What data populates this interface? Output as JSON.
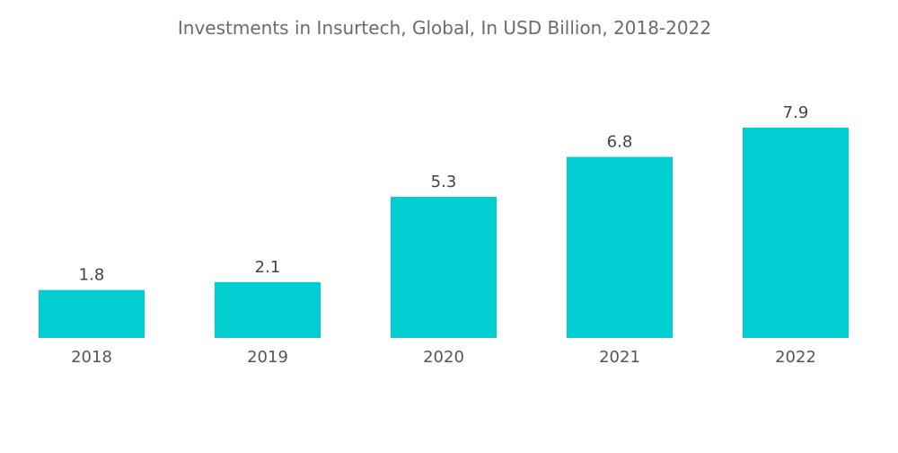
{
  "chart_data": {
    "type": "bar",
    "title": "Investments in Insurtech, Global, In USD Billion, 2018-2022",
    "categories": [
      "2018",
      "2019",
      "2020",
      "2021",
      "2022"
    ],
    "values": [
      1.8,
      2.1,
      5.3,
      6.8,
      7.9
    ],
    "value_labels": [
      "1.8",
      "2.1",
      "5.3",
      "6.8",
      "7.9"
    ],
    "xlabel": "",
    "ylabel": "",
    "ylim": [
      0,
      7.9
    ],
    "grid": false,
    "legend": "none",
    "bar_color": "#00ced1"
  }
}
